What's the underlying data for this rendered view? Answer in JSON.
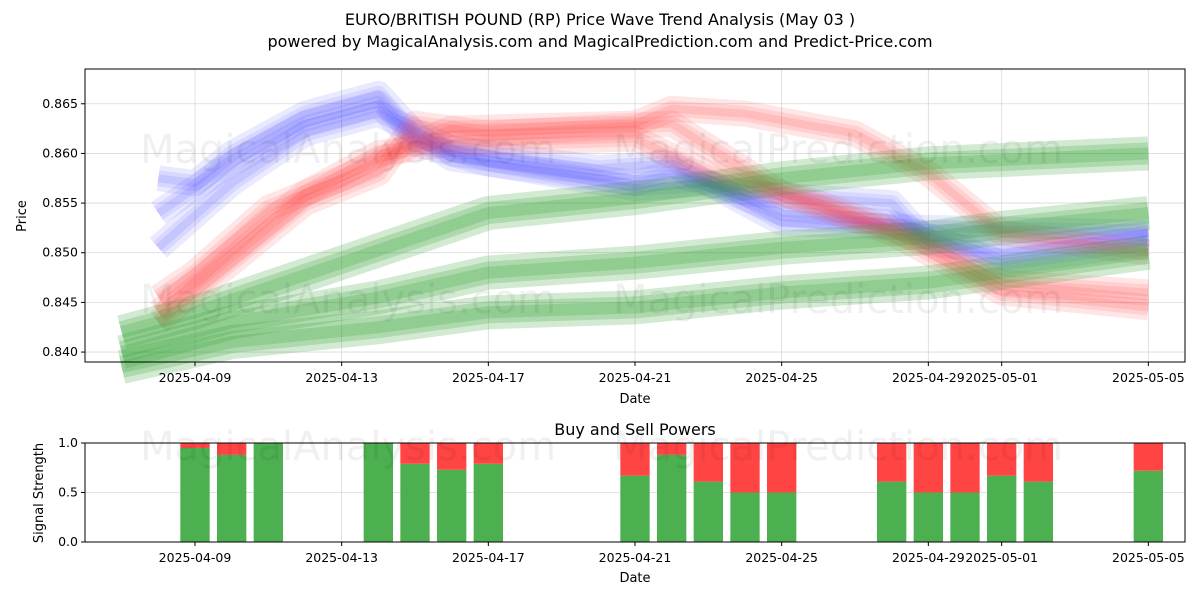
{
  "page": {
    "title_line1": "EURO/BRITISH POUND (RP) Price Wave Trend Analysis (May 03 )",
    "title_line2": "powered by MagicalAnalysis.com and MagicalPrediction.com and Predict-Price.com",
    "watermarks": [
      "MagicalAnalysis.com",
      "MagicalPrediction.com"
    ]
  },
  "colors": {
    "blue_band": "#3333ff",
    "red_band": "#ff3333",
    "green_band": "#2e9e2e",
    "buy": "#4caf50",
    "sell": "#ff4444"
  },
  "chart_data": [
    {
      "type": "area",
      "title": "",
      "xlabel": "Date",
      "ylabel": "Price",
      "xlim": [
        "2025-04-06",
        "2025-05-06"
      ],
      "ylim": [
        0.839,
        0.8685
      ],
      "x_ticks": [
        "2025-04-09",
        "2025-04-13",
        "2025-04-17",
        "2025-04-21",
        "2025-04-25",
        "2025-04-29",
        "2025-05-01",
        "2025-05-05"
      ],
      "y_ticks": [
        "0.840",
        "0.845",
        "0.850",
        "0.855",
        "0.860",
        "0.865"
      ],
      "y_tick_values": [
        0.84,
        0.845,
        0.85,
        0.855,
        0.86,
        0.865
      ],
      "grid": true,
      "series": [
        {
          "color": "blue",
          "band": [
            {
              "x": "2025-04-08",
              "y": 0.8575
            },
            {
              "x": "2025-04-09",
              "y": 0.857
            },
            {
              "x": "2025-04-10",
              "y": 0.86
            },
            {
              "x": "2025-04-12",
              "y": 0.864
            },
            {
              "x": "2025-04-14",
              "y": 0.866
            },
            {
              "x": "2025-04-15",
              "y": 0.862
            },
            {
              "x": "2025-04-16",
              "y": 0.8595
            },
            {
              "x": "2025-04-21",
              "y": 0.857
            },
            {
              "x": "2025-04-22",
              "y": 0.858
            },
            {
              "x": "2025-04-24",
              "y": 0.856
            },
            {
              "x": "2025-04-28",
              "y": 0.855
            },
            {
              "x": "2025-04-29",
              "y": 0.851
            },
            {
              "x": "2025-05-01",
              "y": 0.85
            },
            {
              "x": "2025-05-05",
              "y": 0.852
            }
          ]
        },
        {
          "color": "blue",
          "band": [
            {
              "x": "2025-04-08",
              "y": 0.854
            },
            {
              "x": "2025-04-10",
              "y": 0.859
            },
            {
              "x": "2025-04-12",
              "y": 0.863
            },
            {
              "x": "2025-04-14",
              "y": 0.865
            },
            {
              "x": "2025-04-15",
              "y": 0.861
            },
            {
              "x": "2025-04-17",
              "y": 0.859
            },
            {
              "x": "2025-04-21",
              "y": 0.8565
            },
            {
              "x": "2025-04-23",
              "y": 0.857
            },
            {
              "x": "2025-04-25",
              "y": 0.854
            },
            {
              "x": "2025-04-28",
              "y": 0.853
            },
            {
              "x": "2025-05-01",
              "y": 0.849
            },
            {
              "x": "2025-05-05",
              "y": 0.851
            }
          ]
        },
        {
          "color": "blue",
          "band": [
            {
              "x": "2025-04-08",
              "y": 0.8505
            },
            {
              "x": "2025-04-10",
              "y": 0.857
            },
            {
              "x": "2025-04-12",
              "y": 0.862
            },
            {
              "x": "2025-04-14",
              "y": 0.864
            },
            {
              "x": "2025-04-16",
              "y": 0.8605
            },
            {
              "x": "2025-04-20",
              "y": 0.8585
            },
            {
              "x": "2025-04-22",
              "y": 0.859
            },
            {
              "x": "2025-04-25",
              "y": 0.853
            },
            {
              "x": "2025-04-29",
              "y": 0.8525
            },
            {
              "x": "2025-05-05",
              "y": 0.852
            }
          ]
        },
        {
          "color": "red",
          "band": [
            {
              "x": "2025-04-08",
              "y": 0.8455
            },
            {
              "x": "2025-04-09",
              "y": 0.848
            },
            {
              "x": "2025-04-11",
              "y": 0.8545
            },
            {
              "x": "2025-04-13",
              "y": 0.8575
            },
            {
              "x": "2025-04-15",
              "y": 0.861
            },
            {
              "x": "2025-04-16",
              "y": 0.8625
            },
            {
              "x": "2025-04-21",
              "y": 0.863
            },
            {
              "x": "2025-04-22",
              "y": 0.8645
            },
            {
              "x": "2025-04-24",
              "y": 0.864
            },
            {
              "x": "2025-04-27",
              "y": 0.862
            },
            {
              "x": "2025-04-29",
              "y": 0.858
            },
            {
              "x": "2025-05-01",
              "y": 0.852
            },
            {
              "x": "2025-05-05",
              "y": 0.85
            }
          ]
        },
        {
          "color": "red",
          "band": [
            {
              "x": "2025-04-08",
              "y": 0.844
            },
            {
              "x": "2025-04-10",
              "y": 0.85
            },
            {
              "x": "2025-04-12",
              "y": 0.856
            },
            {
              "x": "2025-04-14",
              "y": 0.86
            },
            {
              "x": "2025-04-16",
              "y": 0.861
            },
            {
              "x": "2025-04-21",
              "y": 0.8615
            },
            {
              "x": "2025-04-23",
              "y": 0.858
            },
            {
              "x": "2025-04-26",
              "y": 0.855
            },
            {
              "x": "2025-04-29",
              "y": 0.851
            },
            {
              "x": "2025-05-01",
              "y": 0.847
            },
            {
              "x": "2025-05-05",
              "y": 0.846
            }
          ]
        },
        {
          "color": "red",
          "band": [
            {
              "x": "2025-04-08",
              "y": 0.843
            },
            {
              "x": "2025-04-10",
              "y": 0.849
            },
            {
              "x": "2025-04-12",
              "y": 0.855
            },
            {
              "x": "2025-04-14",
              "y": 0.858
            },
            {
              "x": "2025-04-15",
              "y": 0.863
            },
            {
              "x": "2025-04-17",
              "y": 0.862
            },
            {
              "x": "2025-04-22",
              "y": 0.863
            },
            {
              "x": "2025-04-25",
              "y": 0.856
            },
            {
              "x": "2025-04-28",
              "y": 0.852
            },
            {
              "x": "2025-05-01",
              "y": 0.846
            },
            {
              "x": "2025-05-05",
              "y": 0.8445
            }
          ]
        },
        {
          "color": "green",
          "band": [
            {
              "x": "2025-04-07",
              "y": 0.842
            },
            {
              "x": "2025-04-09",
              "y": 0.844
            },
            {
              "x": "2025-04-13",
              "y": 0.849
            },
            {
              "x": "2025-04-17",
              "y": 0.854
            },
            {
              "x": "2025-04-21",
              "y": 0.8555
            },
            {
              "x": "2025-04-25",
              "y": 0.8575
            },
            {
              "x": "2025-04-29",
              "y": 0.859
            },
            {
              "x": "2025-05-05",
              "y": 0.86
            }
          ]
        },
        {
          "color": "green",
          "band": [
            {
              "x": "2025-04-07",
              "y": 0.84
            },
            {
              "x": "2025-04-10",
              "y": 0.843
            },
            {
              "x": "2025-04-14",
              "y": 0.8455
            },
            {
              "x": "2025-04-17",
              "y": 0.848
            },
            {
              "x": "2025-04-21",
              "y": 0.849
            },
            {
              "x": "2025-04-25",
              "y": 0.8505
            },
            {
              "x": "2025-04-29",
              "y": 0.8515
            },
            {
              "x": "2025-05-01",
              "y": 0.8525
            },
            {
              "x": "2025-05-05",
              "y": 0.854
            }
          ]
        },
        {
          "color": "green",
          "band": [
            {
              "x": "2025-04-07",
              "y": 0.8385
            },
            {
              "x": "2025-04-10",
              "y": 0.841
            },
            {
              "x": "2025-04-14",
              "y": 0.8425
            },
            {
              "x": "2025-04-17",
              "y": 0.844
            },
            {
              "x": "2025-04-21",
              "y": 0.8445
            },
            {
              "x": "2025-04-25",
              "y": 0.846
            },
            {
              "x": "2025-04-29",
              "y": 0.847
            },
            {
              "x": "2025-05-01",
              "y": 0.848
            },
            {
              "x": "2025-05-05",
              "y": 0.85
            }
          ]
        }
      ]
    },
    {
      "type": "bar",
      "title": "Buy and Sell Powers",
      "xlabel": "Date",
      "ylabel": "Signal Strength",
      "xlim": [
        "2025-04-06",
        "2025-05-06"
      ],
      "ylim": [
        0,
        1.0
      ],
      "x_ticks": [
        "2025-04-09",
        "2025-04-13",
        "2025-04-17",
        "2025-04-21",
        "2025-04-25",
        "2025-04-29",
        "2025-05-01",
        "2025-05-05"
      ],
      "y_ticks": [
        "0.0",
        "0.5",
        "1.0"
      ],
      "y_tick_values": [
        0,
        0.5,
        1.0
      ],
      "grid": true,
      "stacked": true,
      "categories": [
        "2025-04-09",
        "2025-04-10",
        "2025-04-11",
        "2025-04-14",
        "2025-04-15",
        "2025-04-16",
        "2025-04-17",
        "2025-04-21",
        "2025-04-22",
        "2025-04-23",
        "2025-04-24",
        "2025-04-25",
        "2025-04-28",
        "2025-04-29",
        "2025-04-30",
        "2025-05-01",
        "2025-05-02",
        "2025-05-05"
      ],
      "series": [
        {
          "values": [
            0.95,
            0.88,
            1.0,
            1.0,
            0.79,
            0.73,
            0.79,
            0.67,
            0.88,
            0.61,
            0.5,
            0.5,
            0.61,
            0.5,
            0.5,
            0.67,
            0.61,
            0.72
          ]
        },
        {
          "values": [
            0.05,
            0.12,
            0.0,
            0.0,
            0.21,
            0.27,
            0.21,
            0.33,
            0.12,
            0.39,
            0.5,
            0.5,
            0.39,
            0.5,
            0.5,
            0.33,
            0.39,
            0.28
          ]
        }
      ]
    }
  ]
}
